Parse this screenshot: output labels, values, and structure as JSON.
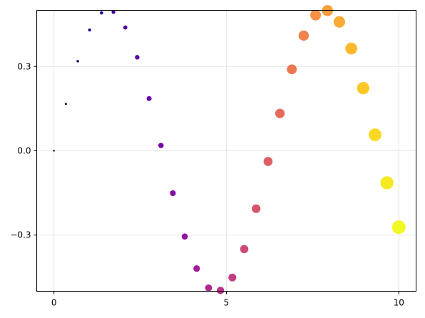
{
  "chart_data": {
    "type": "scatter",
    "title": "",
    "xlabel": "",
    "ylabel": "",
    "xlim": [
      -0.5,
      10.5
    ],
    "ylim": [
      -0.5,
      0.5
    ],
    "grid": true,
    "x_ticks": [
      {
        "value": 0,
        "label": "0"
      },
      {
        "value": 5,
        "label": "5"
      },
      {
        "value": 10,
        "label": "10"
      }
    ],
    "y_ticks": [
      {
        "value": -0.3,
        "label": "−0.3"
      },
      {
        "value": 0.0,
        "label": "0.0"
      },
      {
        "value": 0.3,
        "label": "0.3"
      }
    ],
    "colormap": [
      "#0d0887",
      "#41049d",
      "#6a00a8",
      "#8f0da4",
      "#b12a90",
      "#cc4778",
      "#e16462",
      "#f2844b",
      "#fca636",
      "#fcce25",
      "#f0f921"
    ],
    "colormap_start": "#000000",
    "series": [
      {
        "marker_size_encodes": "index",
        "marker_color_encodes": "index",
        "points": [
          {
            "x": 0.0,
            "y": 0.0
          },
          {
            "x": 0.345,
            "y": 0.167
          },
          {
            "x": 0.69,
            "y": 0.319
          },
          {
            "x": 1.034,
            "y": 0.43
          },
          {
            "x": 1.379,
            "y": 0.491
          },
          {
            "x": 1.724,
            "y": 0.494
          },
          {
            "x": 2.069,
            "y": 0.439
          },
          {
            "x": 2.414,
            "y": 0.333
          },
          {
            "x": 2.759,
            "y": 0.186
          },
          {
            "x": 3.103,
            "y": 0.019
          },
          {
            "x": 3.448,
            "y": -0.151
          },
          {
            "x": 3.793,
            "y": -0.305
          },
          {
            "x": 4.138,
            "y": -0.419
          },
          {
            "x": 4.483,
            "y": -0.488
          },
          {
            "x": 4.828,
            "y": -0.497
          },
          {
            "x": 5.172,
            "y": -0.451
          },
          {
            "x": 5.517,
            "y": -0.35
          },
          {
            "x": 5.862,
            "y": -0.206
          },
          {
            "x": 6.207,
            "y": -0.038
          },
          {
            "x": 6.552,
            "y": 0.133
          },
          {
            "x": 6.897,
            "y": 0.29
          },
          {
            "x": 7.241,
            "y": 0.41
          },
          {
            "x": 7.586,
            "y": 0.483
          },
          {
            "x": 7.931,
            "y": 0.499
          },
          {
            "x": 8.276,
            "y": 0.459
          },
          {
            "x": 8.621,
            "y": 0.364
          },
          {
            "x": 8.966,
            "y": 0.223
          },
          {
            "x": 9.31,
            "y": 0.057
          },
          {
            "x": 9.655,
            "y": -0.114
          },
          {
            "x": 10.0,
            "y": -0.272
          }
        ]
      }
    ]
  }
}
